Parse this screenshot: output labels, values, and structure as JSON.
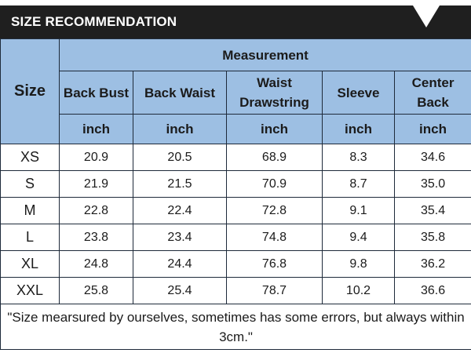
{
  "title": "SIZE RECOMMENDATION",
  "header_icon": "chevron-down-icon",
  "colors": {
    "title_bar": "#1f1f1f",
    "header_fill": "#9dbfe3",
    "border": "#1e2a3a"
  },
  "table": {
    "size_label": "Size",
    "group_label": "Measurement",
    "columns": [
      {
        "label": "Back Bust",
        "unit": "inch"
      },
      {
        "label": "Back Waist",
        "unit": "inch"
      },
      {
        "label": "Waist Drawstring",
        "unit": "inch"
      },
      {
        "label": "Sleeve",
        "unit": "inch"
      },
      {
        "label": "Center Back",
        "unit": "inch"
      }
    ],
    "rows": [
      {
        "size": "XS",
        "values": [
          "20.9",
          "20.5",
          "68.9",
          "8.3",
          "34.6"
        ]
      },
      {
        "size": "S",
        "values": [
          "21.9",
          "21.5",
          "70.9",
          "8.7",
          "35.0"
        ]
      },
      {
        "size": "M",
        "values": [
          "22.8",
          "22.4",
          "72.8",
          "9.1",
          "35.4"
        ]
      },
      {
        "size": "L",
        "values": [
          "23.8",
          "23.4",
          "74.8",
          "9.4",
          "35.8"
        ]
      },
      {
        "size": "XL",
        "values": [
          "24.8",
          "24.4",
          "76.8",
          "9.8",
          "36.2"
        ]
      },
      {
        "size": "XXL",
        "values": [
          "25.8",
          "25.4",
          "78.7",
          "10.2",
          "36.6"
        ]
      }
    ],
    "note": "\"Size mearsured by ourselves, sometimes has some errors, but always within 3cm.\""
  }
}
